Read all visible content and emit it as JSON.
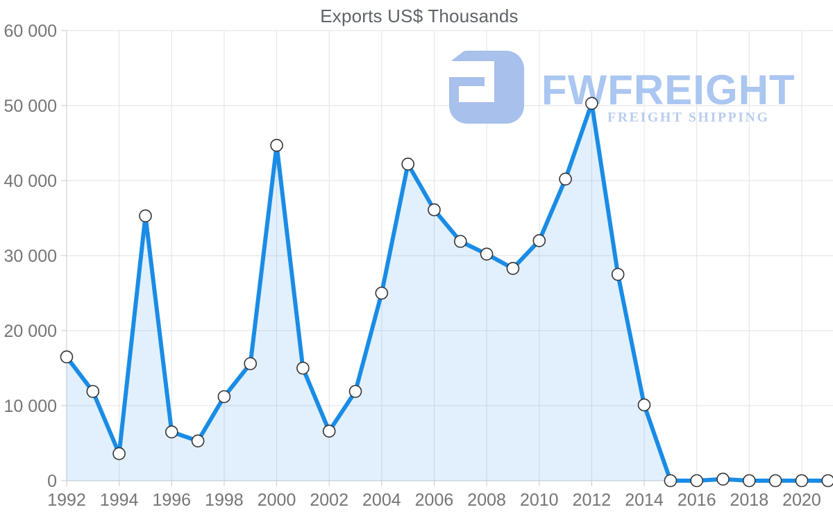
{
  "title": "Exports US$ Thousands",
  "watermark": {
    "brand": "FWFREIGHT",
    "tagline": "FREIGHT SHIPPING",
    "mark_color": "#a7c0ec",
    "brand_color": "#aac6f1",
    "tagline_color": "#b9cdf0"
  },
  "chart_data": {
    "type": "area",
    "title": "Exports US$ Thousands",
    "xlabel": "",
    "ylabel": "",
    "x": [
      1992,
      1993,
      1994,
      1995,
      1996,
      1997,
      1998,
      1999,
      2000,
      2001,
      2002,
      2003,
      2004,
      2005,
      2006,
      2007,
      2008,
      2009,
      2010,
      2011,
      2012,
      2013,
      2014,
      2015,
      2016,
      2017,
      2018,
      2019,
      2020,
      2021
    ],
    "values": [
      16500,
      11900,
      3600,
      35300,
      6500,
      5300,
      11200,
      15600,
      44700,
      15000,
      6600,
      11900,
      25000,
      42200,
      36100,
      31900,
      30200,
      28300,
      32000,
      40200,
      50300,
      27500,
      10100,
      0,
      0,
      200,
      0,
      0,
      0,
      0
    ],
    "ylim": [
      0,
      60000
    ],
    "y_ticks": [
      0,
      10000,
      20000,
      30000,
      40000,
      50000,
      60000
    ],
    "y_tick_labels": [
      "0",
      "10 000",
      "20 000",
      "30 000",
      "40 000",
      "50 000",
      "60 000"
    ],
    "x_tick_years": [
      1992,
      1994,
      1996,
      1998,
      2000,
      2002,
      2004,
      2006,
      2008,
      2010,
      2012,
      2014,
      2016,
      2018,
      2020
    ],
    "x_tick_labels": [
      "1992",
      "1994",
      "1996",
      "1998",
      "2000",
      "2002",
      "2004",
      "2006",
      "2008",
      "2010",
      "2012",
      "2014",
      "2016",
      "2018",
      "2020"
    ],
    "grid": true,
    "legend": "none",
    "line_color": "#1a8ce5",
    "fill_color": "rgba(26,140,229,0.13)",
    "marker_fill": "#ffffff",
    "marker_stroke": "#333333",
    "grid_color": "#e2e2e2",
    "axis_color": "#c9c9c9",
    "tick_label_color": "#757575"
  }
}
